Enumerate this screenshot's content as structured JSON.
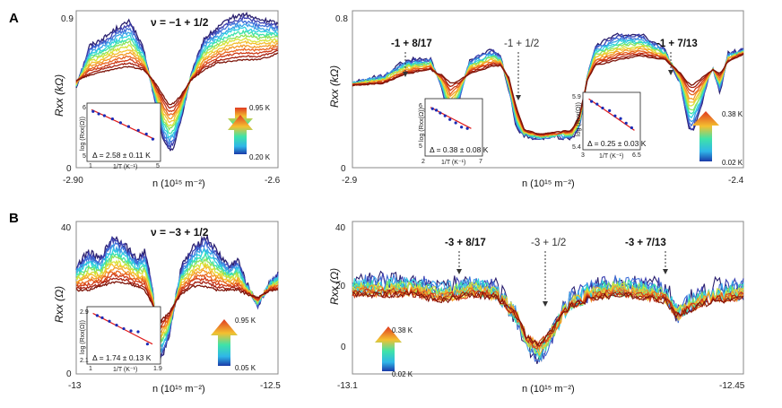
{
  "figure": {
    "panel_labels": [
      "A",
      "B"
    ]
  },
  "colors": {
    "temperature_ramp": [
      "#2a1f6e",
      "#3b3fb0",
      "#3f6fd8",
      "#3aa3e8",
      "#2fd2e0",
      "#3fe3a8",
      "#8ee35a",
      "#d8e33a",
      "#f4c030",
      "#f39a28",
      "#e8641f",
      "#cf3a16",
      "#a61f0f",
      "#7d1409"
    ],
    "fit_line": "#e01a1a",
    "inset_points": "#1a2ab5"
  },
  "chart_data": [
    {
      "id": "A-left",
      "type": "line",
      "title": "ν = −1 + 1/2",
      "xlabel": "n (10¹⁵ m⁻²)",
      "ylabel": "Rxx (kΩ)",
      "xlim": [
        -2.9,
        -2.6
      ],
      "ylim": [
        0,
        0.9
      ],
      "x_tick_labels": [
        "-2.90",
        "-2.6"
      ],
      "y_tick_labels": [
        "0",
        "0.9"
      ],
      "temperature_range": [
        "0.20 K",
        "0.95 K"
      ],
      "n_curves": 14,
      "profile": {
        "x": [
          -2.9,
          -2.88,
          -2.86,
          -2.84,
          -2.82,
          -2.8,
          -2.785,
          -2.77,
          -2.762,
          -2.755,
          -2.745,
          -2.73,
          -2.71,
          -2.69,
          -2.67,
          -2.65,
          -2.63,
          -2.61,
          -2.6
        ],
        "cold": [
          0.46,
          0.7,
          0.74,
          0.8,
          0.84,
          0.68,
          0.42,
          0.15,
          0.1,
          0.12,
          0.26,
          0.52,
          0.74,
          0.8,
          0.86,
          0.88,
          0.85,
          0.84,
          0.82
        ],
        "hot": [
          0.5,
          0.53,
          0.55,
          0.57,
          0.58,
          0.56,
          0.5,
          0.41,
          0.36,
          0.37,
          0.41,
          0.5,
          0.56,
          0.6,
          0.61,
          0.62,
          0.62,
          0.64,
          0.66
        ]
      },
      "inset": {
        "xlabel": "1/T (K⁻¹)",
        "ylabel": "log (Rxx(Ω))",
        "x_tick_labels": [
          "1",
          "5"
        ],
        "y_tick_labels": [
          "6",
          "5"
        ],
        "xlim": [
          1,
          5
        ],
        "ylim": [
          4.6,
          6.2
        ],
        "points_x": [
          1.1,
          1.45,
          1.8,
          2.3,
          2.8,
          3.3,
          3.9,
          4.4,
          4.8
        ],
        "points_y": [
          6.05,
          5.95,
          5.88,
          5.75,
          5.6,
          5.45,
          5.3,
          5.15,
          4.95
        ],
        "fit": [
          [
            1.0,
            6.12
          ],
          [
            4.9,
            4.95
          ]
        ],
        "gap_text": "Δ = 2.58 ± 0.11 K"
      }
    },
    {
      "id": "A-right",
      "type": "line",
      "title": "",
      "xlabel": "n (10¹⁵ m⁻²)",
      "ylabel": "Rxx (kΩ)",
      "xlim": [
        -2.9,
        -2.4
      ],
      "ylim": [
        0,
        0.8
      ],
      "x_tick_labels": [
        "-2.9",
        "-2.4"
      ],
      "y_tick_labels": [
        "0",
        "0.8"
      ],
      "temperature_range": [
        "0.02 K",
        "0.38 K"
      ],
      "n_curves": 14,
      "annotations": [
        {
          "text": "-1 + 8/17",
          "bold": true,
          "x": -2.78
        },
        {
          "text": "-1 + 1/2",
          "bold": false,
          "x": -2.65
        },
        {
          "text": "-1 + 7/13",
          "bold": true,
          "x": -2.47
        }
      ],
      "profile": {
        "x": [
          -2.9,
          -2.86,
          -2.83,
          -2.8,
          -2.785,
          -2.775,
          -2.765,
          -2.75,
          -2.72,
          -2.71,
          -2.7,
          -2.69,
          -2.68,
          -2.66,
          -2.64,
          -2.62,
          -2.61,
          -2.6,
          -2.59,
          -2.56,
          -2.53,
          -2.5,
          -2.48,
          -2.47,
          -2.465,
          -2.455,
          -2.44,
          -2.43,
          -2.42,
          -2.4
        ],
        "cold": [
          0.43,
          0.47,
          0.55,
          0.55,
          0.4,
          0.2,
          0.32,
          0.55,
          0.6,
          0.56,
          0.4,
          0.2,
          0.16,
          0.15,
          0.16,
          0.15,
          0.2,
          0.45,
          0.62,
          0.68,
          0.68,
          0.6,
          0.42,
          0.2,
          0.18,
          0.3,
          0.52,
          0.38,
          0.58,
          0.6
        ],
        "hot": [
          0.42,
          0.43,
          0.48,
          0.5,
          0.47,
          0.43,
          0.44,
          0.48,
          0.52,
          0.52,
          0.46,
          0.3,
          0.19,
          0.17,
          0.18,
          0.19,
          0.26,
          0.44,
          0.52,
          0.55,
          0.57,
          0.55,
          0.48,
          0.43,
          0.42,
          0.45,
          0.5,
          0.48,
          0.54,
          0.58
        ]
      },
      "insets": [
        {
          "xlabel": "1/T (K⁻¹)",
          "ylabel": "log (Rxx(Ω))",
          "x_tick_labels": [
            "2",
            "7"
          ],
          "y_tick_labels": [
            "6",
            "5"
          ],
          "xlim": [
            2,
            7
          ],
          "ylim": [
            4.8,
            6.2
          ],
          "points_x": [
            2.3,
            2.7,
            3.1,
            3.6,
            4.1,
            4.7,
            5.3,
            5.9
          ],
          "points_y": [
            6.0,
            5.95,
            5.85,
            5.75,
            5.62,
            5.5,
            5.35,
            5.3
          ],
          "fit": [
            [
              2.1,
              6.05
            ],
            [
              6.3,
              5.3
            ]
          ],
          "gap_text": "Δ = 0.38 ± 0.08 K"
        },
        {
          "xlabel": "1/T (K⁻¹)",
          "ylabel": "log (Rxx(Ω))",
          "x_tick_labels": [
            "3",
            "6.5"
          ],
          "y_tick_labels": [
            "5.9",
            "5.4"
          ],
          "xlim": [
            3,
            6.5
          ],
          "ylim": [
            5.35,
            5.95
          ],
          "points_x": [
            3.3,
            3.7,
            4.1,
            4.6,
            5.0,
            5.4,
            5.8,
            6.2
          ],
          "points_y": [
            5.88,
            5.84,
            5.78,
            5.74,
            5.66,
            5.62,
            5.55,
            5.48
          ],
          "fit": [
            [
              3.1,
              5.92
            ],
            [
              6.4,
              5.44
            ]
          ],
          "gap_text": "Δ = 0.25 ± 0.03 K"
        }
      ]
    },
    {
      "id": "B-left",
      "type": "line",
      "title": "ν = −3 + 1/2",
      "xlabel": "n (10¹⁵ m⁻²)",
      "ylabel": "Rxx (Ω)",
      "xlim": [
        -13,
        -12.5
      ],
      "ylim": [
        0,
        40
      ],
      "x_tick_labels": [
        "-13",
        "-12.5"
      ],
      "y_tick_labels": [
        "0",
        "40"
      ],
      "temperature_range": [
        "0.05 K",
        "0.95 K"
      ],
      "n_curves": 14,
      "profile": {
        "x": [
          -13,
          -12.97,
          -12.94,
          -12.91,
          -12.88,
          -12.85,
          -12.83,
          -12.81,
          -12.8,
          -12.79,
          -12.77,
          -12.74,
          -12.71,
          -12.68,
          -12.65,
          -12.62,
          -12.6,
          -12.58,
          -12.55,
          -12.52,
          -12.5
        ],
        "cold": [
          28,
          32,
          30,
          36,
          34,
          30,
          32,
          22,
          6,
          4,
          10,
          28,
          33,
          36,
          32,
          28,
          30,
          24,
          18,
          24,
          26
        ],
        "hot": [
          22,
          22,
          23,
          24,
          24,
          23,
          22,
          18,
          15,
          14,
          16,
          21,
          23,
          23,
          22,
          22,
          22,
          21,
          20,
          22,
          22
        ]
      },
      "inset": {
        "xlabel": "1/T (K⁻¹)",
        "ylabel": "log (Rxx(Ω))",
        "x_tick_labels": [
          "1",
          "1.9"
        ],
        "y_tick_labels": [
          "2.9",
          "2.1"
        ],
        "xlim": [
          1,
          1.9
        ],
        "ylim": [
          2.05,
          2.95
        ],
        "points_x": [
          1.08,
          1.15,
          1.25,
          1.35,
          1.45,
          1.55,
          1.65,
          1.78
        ],
        "points_y": [
          2.85,
          2.8,
          2.72,
          2.63,
          2.55,
          2.5,
          2.48,
          2.2
        ],
        "fit": [
          [
            1.02,
            2.9
          ],
          [
            1.85,
            2.2
          ]
        ],
        "gap_text": "Δ = 1.74 ± 0.13 K"
      }
    },
    {
      "id": "B-right",
      "type": "line",
      "title": "",
      "xlabel": "n (10¹⁵ m⁻²)",
      "ylabel": "Rxx (Ω)",
      "xlim": [
        -13.1,
        -12.45
      ],
      "ylim": [
        -10,
        40
      ],
      "x_tick_labels": [
        "-13.1",
        "-12.45"
      ],
      "y_tick_labels": [
        "0",
        "20",
        "40"
      ],
      "temperature_range": [
        "0.02 K",
        "0.38 K"
      ],
      "n_curves": 14,
      "annotations": [
        {
          "text": "-3 + 8/17",
          "bold": true,
          "x": -12.94
        },
        {
          "text": "-3 + 1/2",
          "bold": false,
          "x": -12.8
        },
        {
          "text": "-3 + 7/13",
          "bold": true,
          "x": -12.57
        }
      ],
      "profile": {
        "x": [
          -13.1,
          -13.05,
          -13.0,
          -12.95,
          -12.9,
          -12.86,
          -12.83,
          -12.81,
          -12.79,
          -12.77,
          -12.74,
          -12.7,
          -12.66,
          -12.62,
          -12.58,
          -12.56,
          -12.54,
          -12.5,
          -12.45
        ],
        "cold": [
          20,
          20,
          20,
          18,
          20,
          18,
          10,
          0,
          -5,
          2,
          14,
          18,
          20,
          19,
          18,
          10,
          14,
          18,
          18
        ],
        "hot": [
          16,
          16,
          16,
          14,
          16,
          15,
          10,
          2,
          0,
          4,
          12,
          15,
          16,
          15,
          14,
          9,
          11,
          14,
          15
        ]
      }
    }
  ]
}
